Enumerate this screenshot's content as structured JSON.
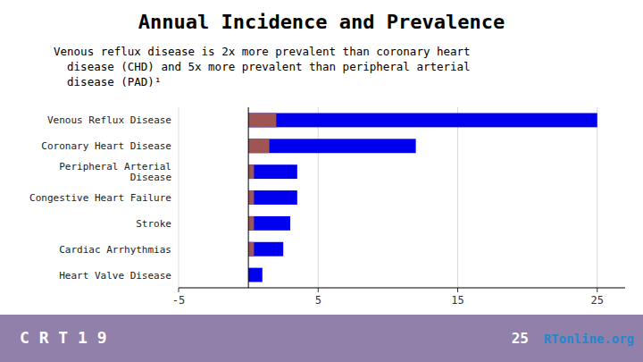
{
  "chart_data": {
    "type": "bar",
    "orientation": "horizontal",
    "title": "Annual Incidence and Prevalence",
    "subtitle": [
      "Venous reflux disease is 2x more prevalent than coronary heart",
      "  disease (CHD) and 5x more prevalent than peripheral arterial",
      "  disease (PAD)¹"
    ],
    "annotations": [
      "C R T 1 9",
      "25",
      "RTonline.org"
    ],
    "categories": [
      "Venous Reflux Disease",
      "Coronary Heart Disease",
      "Peripheral Arterial\nDisease",
      "Congestive Heart Failure",
      "Stroke",
      "Cardiac Arrhythmias",
      "Heart Valve Disease"
    ],
    "series": [
      {
        "color": "#0000EE",
        "values": [
          25,
          12,
          3.5,
          3.5,
          3.0,
          2.5,
          1.0
        ]
      },
      {
        "color": "#A05555",
        "values": [
          2.0,
          1.5,
          0.4,
          0.4,
          0.4,
          0.4,
          0.0
        ]
      }
    ],
    "xlim": [
      -5,
      27
    ],
    "xticks": [
      -5,
      5,
      15,
      25
    ],
    "grid": true
  }
}
